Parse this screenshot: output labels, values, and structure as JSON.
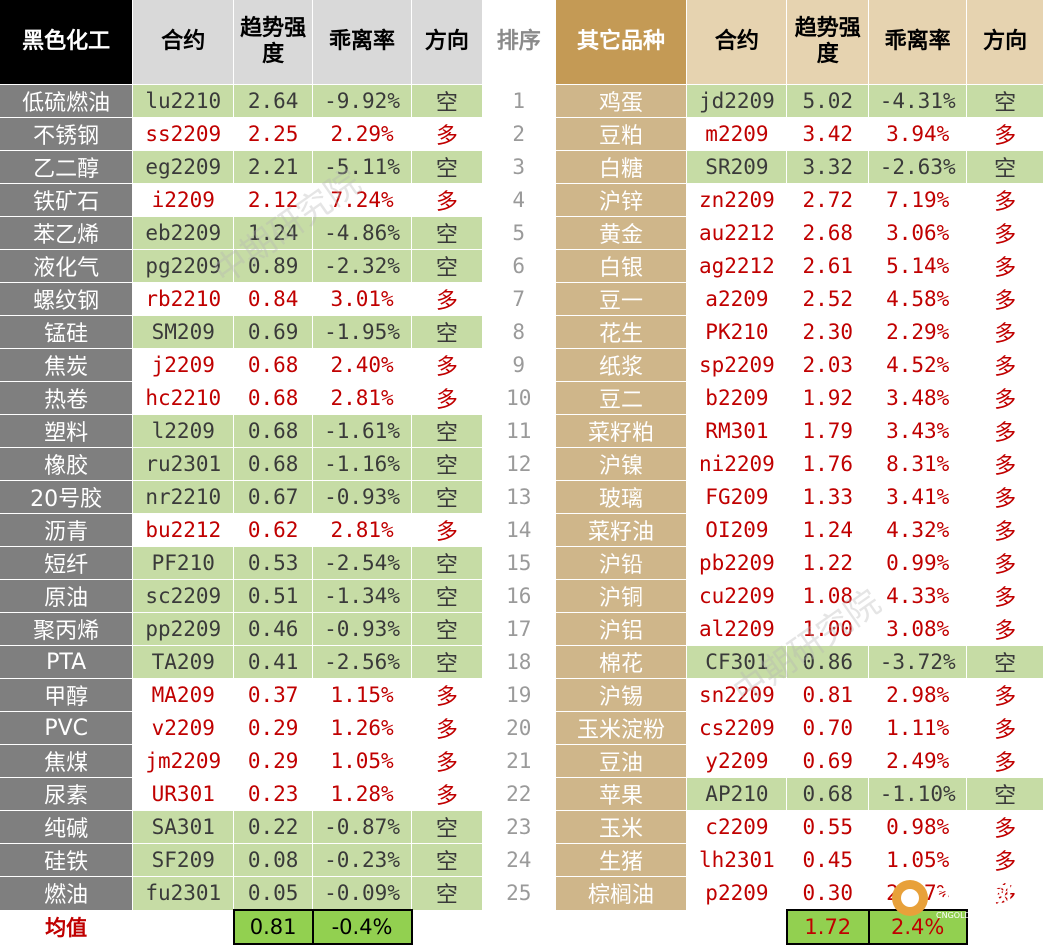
{
  "headers": {
    "left_category": "黑色化工",
    "contract": "合约",
    "strength": "趋势强度",
    "deviation": "乖离率",
    "direction": "方向",
    "rank": "排序",
    "right_category": "其它品种"
  },
  "left_rows": [
    {
      "name": "低硫燃油",
      "contract": "lu2210",
      "strength": "2.64",
      "deviation": "-9.92%",
      "dir": "空"
    },
    {
      "name": "不锈钢",
      "contract": "ss2209",
      "strength": "2.25",
      "deviation": "2.29%",
      "dir": "多"
    },
    {
      "name": "乙二醇",
      "contract": "eg2209",
      "strength": "2.21",
      "deviation": "-5.11%",
      "dir": "空"
    },
    {
      "name": "铁矿石",
      "contract": "i2209",
      "strength": "2.12",
      "deviation": "7.24%",
      "dir": "多"
    },
    {
      "name": "苯乙烯",
      "contract": "eb2209",
      "strength": "1.24",
      "deviation": "-4.86%",
      "dir": "空"
    },
    {
      "name": "液化气",
      "contract": "pg2209",
      "strength": "0.89",
      "deviation": "-2.32%",
      "dir": "空"
    },
    {
      "name": "螺纹钢",
      "contract": "rb2210",
      "strength": "0.84",
      "deviation": "3.01%",
      "dir": "多"
    },
    {
      "name": "锰硅",
      "contract": "SM209",
      "strength": "0.69",
      "deviation": "-1.95%",
      "dir": "空"
    },
    {
      "name": "焦炭",
      "contract": "j2209",
      "strength": "0.68",
      "deviation": "2.40%",
      "dir": "多"
    },
    {
      "name": "热卷",
      "contract": "hc2210",
      "strength": "0.68",
      "deviation": "2.81%",
      "dir": "多"
    },
    {
      "name": "塑料",
      "contract": "l2209",
      "strength": "0.68",
      "deviation": "-1.61%",
      "dir": "空"
    },
    {
      "name": "橡胶",
      "contract": "ru2301",
      "strength": "0.68",
      "deviation": "-1.16%",
      "dir": "空"
    },
    {
      "name": "20号胶",
      "contract": "nr2210",
      "strength": "0.67",
      "deviation": "-0.93%",
      "dir": "空"
    },
    {
      "name": "沥青",
      "contract": "bu2212",
      "strength": "0.62",
      "deviation": "2.81%",
      "dir": "多"
    },
    {
      "name": "短纤",
      "contract": "PF210",
      "strength": "0.53",
      "deviation": "-2.54%",
      "dir": "空"
    },
    {
      "name": "原油",
      "contract": "sc2209",
      "strength": "0.51",
      "deviation": "-1.34%",
      "dir": "空"
    },
    {
      "name": "聚丙烯",
      "contract": "pp2209",
      "strength": "0.46",
      "deviation": "-0.93%",
      "dir": "空"
    },
    {
      "name": "PTA",
      "contract": "TA209",
      "strength": "0.41",
      "deviation": "-2.56%",
      "dir": "空"
    },
    {
      "name": "甲醇",
      "contract": "MA209",
      "strength": "0.37",
      "deviation": "1.15%",
      "dir": "多"
    },
    {
      "name": "PVC",
      "contract": "v2209",
      "strength": "0.29",
      "deviation": "1.26%",
      "dir": "多"
    },
    {
      "name": "焦煤",
      "contract": "jm2209",
      "strength": "0.29",
      "deviation": "1.05%",
      "dir": "多"
    },
    {
      "name": "尿素",
      "contract": "UR301",
      "strength": "0.23",
      "deviation": "1.28%",
      "dir": "多"
    },
    {
      "name": "纯碱",
      "contract": "SA301",
      "strength": "0.22",
      "deviation": "-0.87%",
      "dir": "空"
    },
    {
      "name": "硅铁",
      "contract": "SF209",
      "strength": "0.08",
      "deviation": "-0.23%",
      "dir": "空"
    },
    {
      "name": "燃油",
      "contract": "fu2301",
      "strength": "0.05",
      "deviation": "-0.09%",
      "dir": "空"
    }
  ],
  "right_rows": [
    {
      "name": "鸡蛋",
      "contract": "jd2209",
      "strength": "5.02",
      "deviation": "-4.31%",
      "dir": "空"
    },
    {
      "name": "豆粕",
      "contract": "m2209",
      "strength": "3.42",
      "deviation": "3.94%",
      "dir": "多"
    },
    {
      "name": "白糖",
      "contract": "SR209",
      "strength": "3.32",
      "deviation": "-2.63%",
      "dir": "空"
    },
    {
      "name": "沪锌",
      "contract": "zn2209",
      "strength": "2.72",
      "deviation": "7.19%",
      "dir": "多"
    },
    {
      "name": "黄金",
      "contract": "au2212",
      "strength": "2.68",
      "deviation": "3.06%",
      "dir": "多"
    },
    {
      "name": "白银",
      "contract": "ag2212",
      "strength": "2.61",
      "deviation": "5.14%",
      "dir": "多"
    },
    {
      "name": "豆一",
      "contract": "a2209",
      "strength": "2.52",
      "deviation": "4.58%",
      "dir": "多"
    },
    {
      "name": "花生",
      "contract": "PK210",
      "strength": "2.30",
      "deviation": "2.29%",
      "dir": "多"
    },
    {
      "name": "纸浆",
      "contract": "sp2209",
      "strength": "2.03",
      "deviation": "4.52%",
      "dir": "多"
    },
    {
      "name": "豆二",
      "contract": "b2209",
      "strength": "1.92",
      "deviation": "3.48%",
      "dir": "多"
    },
    {
      "name": "菜籽粕",
      "contract": "RM301",
      "strength": "1.79",
      "deviation": "3.43%",
      "dir": "多"
    },
    {
      "name": "沪镍",
      "contract": "ni2209",
      "strength": "1.76",
      "deviation": "8.31%",
      "dir": "多"
    },
    {
      "name": "玻璃",
      "contract": "FG209",
      "strength": "1.33",
      "deviation": "3.41%",
      "dir": "多"
    },
    {
      "name": "菜籽油",
      "contract": "OI209",
      "strength": "1.24",
      "deviation": "4.32%",
      "dir": "多"
    },
    {
      "name": "沪铅",
      "contract": "pb2209",
      "strength": "1.22",
      "deviation": "0.99%",
      "dir": "多"
    },
    {
      "name": "沪铜",
      "contract": "cu2209",
      "strength": "1.08",
      "deviation": "4.33%",
      "dir": "多"
    },
    {
      "name": "沪铝",
      "contract": "al2209",
      "strength": "1.00",
      "deviation": "3.08%",
      "dir": "多"
    },
    {
      "name": "棉花",
      "contract": "CF301",
      "strength": "0.86",
      "deviation": "-3.72%",
      "dir": "空"
    },
    {
      "name": "沪锡",
      "contract": "sn2209",
      "strength": "0.81",
      "deviation": "2.98%",
      "dir": "多"
    },
    {
      "name": "玉米淀粉",
      "contract": "cs2209",
      "strength": "0.70",
      "deviation": "1.11%",
      "dir": "多"
    },
    {
      "name": "豆油",
      "contract": "y2209",
      "strength": "0.69",
      "deviation": "2.49%",
      "dir": "多"
    },
    {
      "name": "苹果",
      "contract": "AP210",
      "strength": "0.68",
      "deviation": "-1.10%",
      "dir": "空"
    },
    {
      "name": "玉米",
      "contract": "c2209",
      "strength": "0.55",
      "deviation": "0.98%",
      "dir": "多"
    },
    {
      "name": "生猪",
      "contract": "lh2301",
      "strength": "0.45",
      "deviation": "1.05%",
      "dir": "多"
    },
    {
      "name": "棕榈油",
      "contract": "p2209",
      "strength": "0.30",
      "deviation": "2.47%",
      "dir": "多"
    }
  ],
  "average": {
    "label": "均值",
    "left_strength": "0.81",
    "left_deviation": "-0.4%",
    "right_strength": "1.72",
    "right_deviation": "2.4%"
  },
  "watermark": "中期研究院",
  "logo": {
    "name": "中金网",
    "sub": "新媒体",
    "url_text": "CNGOLD.COM.CN"
  },
  "colors": {
    "long": "#c00000",
    "short": "#3a3a3a",
    "green_row": "#c6dca5",
    "gold_header": "#c49a55"
  }
}
